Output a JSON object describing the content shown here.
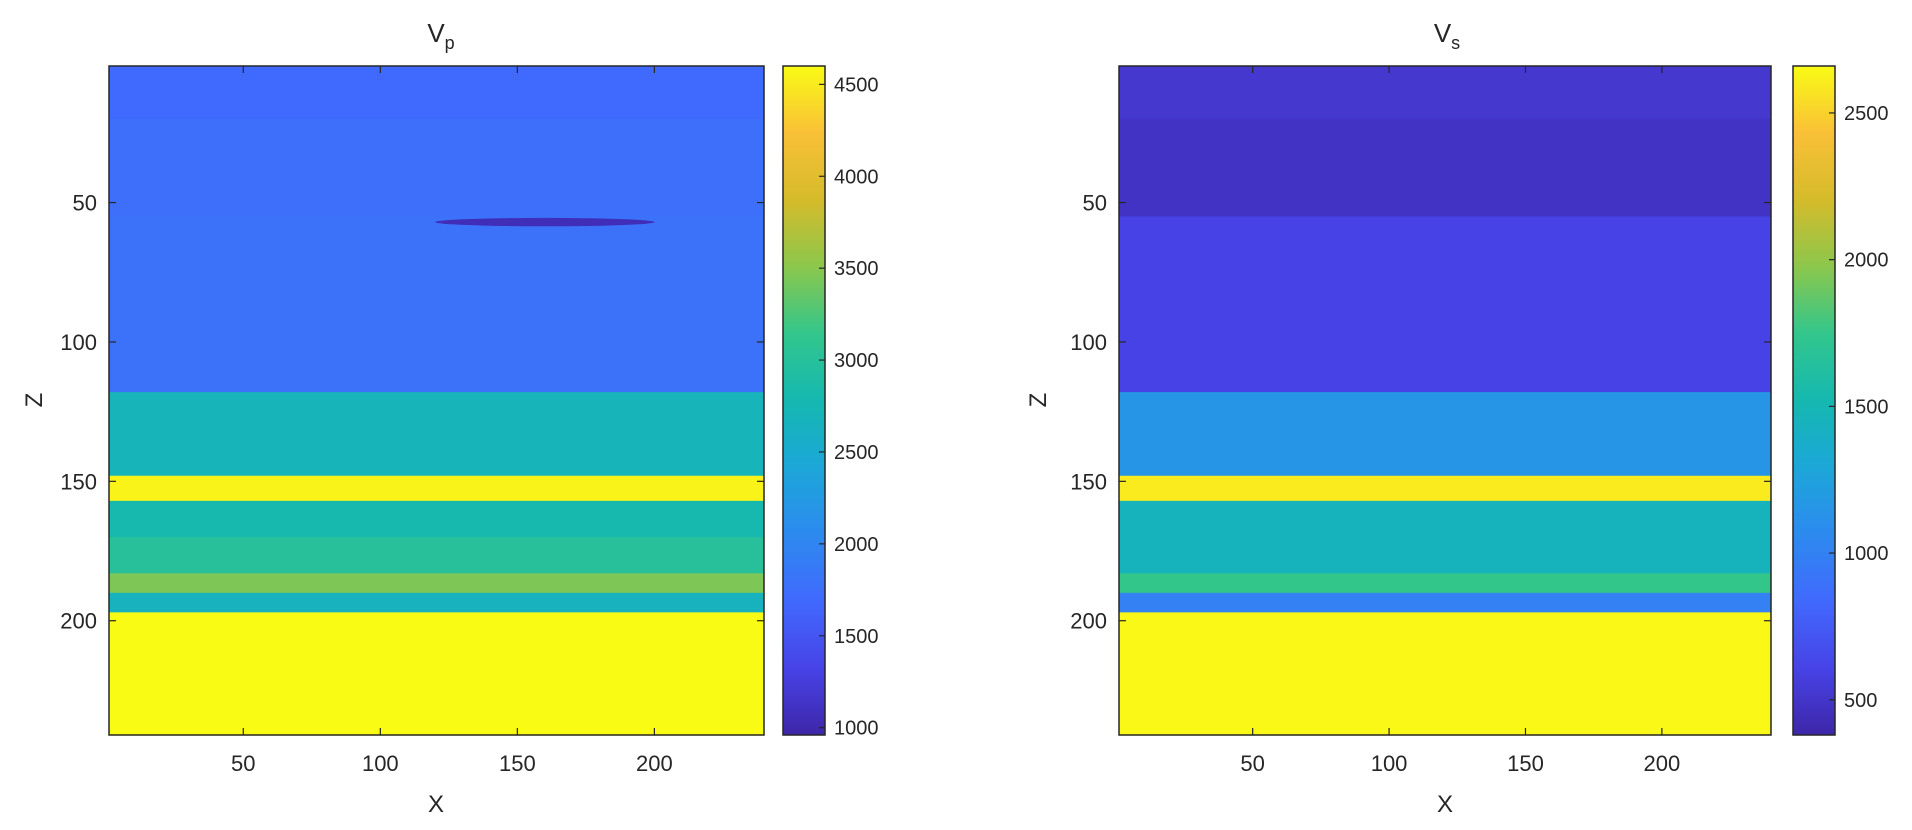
{
  "chart_data": [
    {
      "type": "heatmap",
      "title": "V",
      "title_subscript": "p",
      "xlabel": "X",
      "ylabel": "Z",
      "x_range": [
        1,
        240
      ],
      "z_range": [
        1,
        241
      ],
      "xticks": [
        50,
        100,
        150,
        200
      ],
      "zticks": [
        50,
        100,
        150,
        200
      ],
      "z_reversed": true,
      "colorbar": {
        "min": 960,
        "max": 4600,
        "ticks": [
          1000,
          1500,
          2000,
          2500,
          3000,
          3500,
          4000,
          4500
        ]
      },
      "layers": [
        {
          "z_top": 1,
          "z_bottom": 20,
          "value": 1700
        },
        {
          "z_top": 20,
          "z_bottom": 55,
          "value": 1750
        },
        {
          "z_top": 55,
          "z_bottom": 118,
          "value": 1780
        },
        {
          "z_top": 118,
          "z_bottom": 148,
          "value": 2700
        },
        {
          "z_top": 148,
          "z_bottom": 157,
          "value": 4550
        },
        {
          "z_top": 157,
          "z_bottom": 170,
          "value": 2800
        },
        {
          "z_top": 170,
          "z_bottom": 183,
          "value": 3000
        },
        {
          "z_top": 183,
          "z_bottom": 190,
          "value": 3450
        },
        {
          "z_top": 190,
          "z_bottom": 197,
          "value": 2650
        },
        {
          "z_top": 197,
          "z_bottom": 241,
          "value": 4600
        }
      ],
      "anomalies": [
        {
          "x_center": 160,
          "z_center": 57,
          "x_halfwidth": 40,
          "z_halfwidth": 1.5,
          "value": 1050
        }
      ]
    },
    {
      "type": "heatmap",
      "title": "V",
      "title_subscript": "s",
      "xlabel": "X",
      "ylabel": "Z",
      "x_range": [
        1,
        240
      ],
      "z_range": [
        1,
        241
      ],
      "xticks": [
        50,
        100,
        150,
        200
      ],
      "zticks": [
        50,
        100,
        150,
        200
      ],
      "z_reversed": true,
      "colorbar": {
        "min": 380,
        "max": 2660,
        "ticks": [
          500,
          1000,
          1500,
          2000,
          2500
        ]
      },
      "layers": [
        {
          "z_top": 1,
          "z_bottom": 20,
          "value": 520
        },
        {
          "z_top": 20,
          "z_bottom": 55,
          "value": 480
        },
        {
          "z_top": 55,
          "z_bottom": 118,
          "value": 600
        },
        {
          "z_top": 118,
          "z_bottom": 148,
          "value": 1150
        },
        {
          "z_top": 148,
          "z_bottom": 157,
          "value": 2600
        },
        {
          "z_top": 157,
          "z_bottom": 183,
          "value": 1450
        },
        {
          "z_top": 183,
          "z_bottom": 190,
          "value": 1750
        },
        {
          "z_top": 190,
          "z_bottom": 197,
          "value": 1000
        },
        {
          "z_top": 197,
          "z_bottom": 241,
          "value": 2650
        }
      ],
      "anomalies": []
    }
  ],
  "colormap": [
    "#3e26a8",
    "#4743e7",
    "#4169fd",
    "#2d8aef",
    "#1ca7d8",
    "#15b8b0",
    "#32c68c",
    "#8cc74c",
    "#d5bb2a",
    "#f9c037",
    "#f9fb15"
  ]
}
